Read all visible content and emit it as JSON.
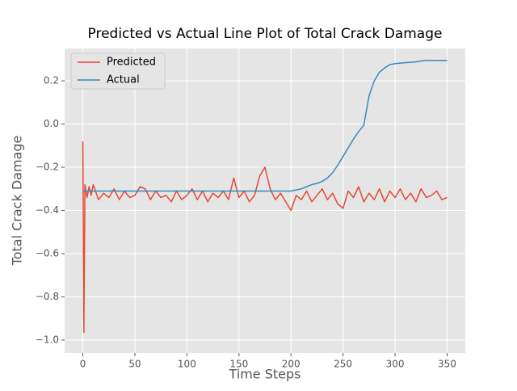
{
  "chart_data": {
    "type": "line",
    "title": "Predicted vs Actual Line Plot of Total Crack Damage",
    "x_label": "Time Steps",
    "y_label": "Total Crack Damage",
    "x": [
      0,
      1,
      2,
      4,
      6,
      8,
      10,
      15,
      20,
      25,
      30,
      35,
      40,
      45,
      50,
      55,
      60,
      65,
      70,
      75,
      80,
      85,
      90,
      95,
      100,
      105,
      110,
      115,
      120,
      125,
      130,
      135,
      140,
      145,
      150,
      155,
      160,
      165,
      170,
      175,
      180,
      185,
      190,
      195,
      200,
      205,
      210,
      215,
      220,
      225,
      230,
      235,
      240,
      245,
      250,
      255,
      260,
      265,
      270,
      275,
      280,
      285,
      290,
      295,
      300,
      305,
      310,
      315,
      320,
      325,
      330,
      335,
      340,
      345,
      350
    ],
    "series": [
      {
        "name": "Predicted",
        "color": "#e24a33",
        "values": [
          -0.08,
          -0.965,
          -0.28,
          -0.34,
          -0.29,
          -0.33,
          -0.28,
          -0.35,
          -0.32,
          -0.34,
          -0.3,
          -0.35,
          -0.31,
          -0.34,
          -0.33,
          -0.29,
          -0.3,
          -0.35,
          -0.31,
          -0.34,
          -0.33,
          -0.36,
          -0.31,
          -0.35,
          -0.33,
          -0.3,
          -0.35,
          -0.31,
          -0.36,
          -0.32,
          -0.34,
          -0.31,
          -0.35,
          -0.25,
          -0.34,
          -0.31,
          -0.36,
          -0.33,
          -0.24,
          -0.2,
          -0.3,
          -0.35,
          -0.32,
          -0.36,
          -0.4,
          -0.33,
          -0.35,
          -0.31,
          -0.36,
          -0.33,
          -0.3,
          -0.35,
          -0.32,
          -0.37,
          -0.39,
          -0.31,
          -0.34,
          -0.29,
          -0.36,
          -0.32,
          -0.35,
          -0.3,
          -0.36,
          -0.31,
          -0.34,
          -0.3,
          -0.35,
          -0.32,
          -0.36,
          -0.3,
          -0.34,
          -0.33,
          -0.31,
          -0.35,
          -0.34
        ]
      },
      {
        "name": "Actual",
        "color": "#348abd",
        "values": [
          -0.31,
          -0.31,
          -0.31,
          -0.31,
          -0.31,
          -0.31,
          -0.31,
          -0.31,
          -0.31,
          -0.31,
          -0.31,
          -0.31,
          -0.31,
          -0.31,
          -0.31,
          -0.31,
          -0.31,
          -0.31,
          -0.31,
          -0.31,
          -0.31,
          -0.31,
          -0.31,
          -0.31,
          -0.31,
          -0.31,
          -0.31,
          -0.31,
          -0.31,
          -0.31,
          -0.31,
          -0.31,
          -0.31,
          -0.31,
          -0.31,
          -0.31,
          -0.31,
          -0.31,
          -0.31,
          -0.31,
          -0.31,
          -0.31,
          -0.31,
          -0.31,
          -0.31,
          -0.305,
          -0.3,
          -0.29,
          -0.28,
          -0.275,
          -0.265,
          -0.25,
          -0.225,
          -0.19,
          -0.15,
          -0.11,
          -0.07,
          -0.035,
          -0.005,
          0.13,
          0.2,
          0.24,
          0.26,
          0.275,
          0.28,
          0.282,
          0.284,
          0.286,
          0.288,
          0.292,
          0.295,
          0.295,
          0.295,
          0.295,
          0.295
        ]
      }
    ],
    "xlim": [
      -17.5,
      367.5
    ],
    "xticks": [
      0,
      50,
      100,
      150,
      200,
      250,
      300,
      350
    ],
    "ylim": [
      -1.06,
      0.35
    ],
    "yticks": [
      {
        "value": -1.0,
        "label": "−1.0"
      },
      {
        "value": -0.8,
        "label": "−0.8"
      },
      {
        "value": -0.6,
        "label": "−0.6"
      },
      {
        "value": -0.4,
        "label": "−0.4"
      },
      {
        "value": -0.2,
        "label": "−0.2"
      },
      {
        "value": 0.0,
        "label": "0.0"
      },
      0.2
    ],
    "grid": true,
    "legend": "upper left"
  }
}
